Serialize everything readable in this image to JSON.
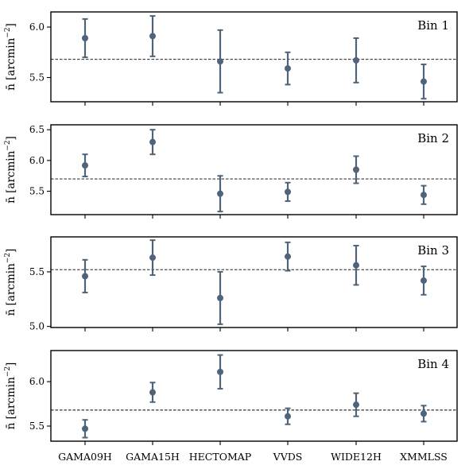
{
  "chart_data": {
    "type": "scatter",
    "categories": [
      "GAMA09H",
      "GAMA15H",
      "HECTOMAP",
      "VVDS",
      "WIDE12H",
      "XMMLSS"
    ],
    "ylabel": {
      "main": "n̄ [arcmin",
      "sup": "−2",
      "close": "]"
    },
    "series_color": "#4f6479",
    "panels": [
      {
        "label": "Bin 1",
        "ylim": [
          5.26,
          6.15
        ],
        "yticks": [
          5.5,
          6.0
        ],
        "ytick_labels": [
          "5.5",
          "6.0"
        ],
        "mean": 5.68,
        "values": [
          5.89,
          5.91,
          5.66,
          5.59,
          5.67,
          5.46
        ],
        "errors": [
          0.19,
          0.2,
          0.31,
          0.16,
          0.22,
          0.17
        ]
      },
      {
        "label": "Bin 2",
        "ylim": [
          5.12,
          6.58
        ],
        "yticks": [
          5.5,
          6.0,
          6.5
        ],
        "ytick_labels": [
          "5.5",
          "6.0",
          "6.5"
        ],
        "mean": 5.7,
        "values": [
          5.92,
          6.3,
          5.46,
          5.49,
          5.85,
          5.44
        ],
        "errors": [
          0.18,
          0.2,
          0.29,
          0.15,
          0.22,
          0.15
        ]
      },
      {
        "label": "Bin 3",
        "ylim": [
          4.99,
          5.82
        ],
        "yticks": [
          5.0,
          5.5
        ],
        "ytick_labels": [
          "5.0",
          "5.5"
        ],
        "mean": 5.52,
        "values": [
          5.46,
          5.63,
          5.26,
          5.64,
          5.56,
          5.42
        ],
        "errors": [
          0.15,
          0.16,
          0.24,
          0.13,
          0.18,
          0.13
        ]
      },
      {
        "label": "Bin 4",
        "ylim": [
          5.33,
          6.35
        ],
        "yticks": [
          5.5,
          6.0
        ],
        "ytick_labels": [
          "5.5",
          "6.0"
        ],
        "mean": 5.68,
        "values": [
          5.47,
          5.88,
          6.11,
          5.61,
          5.74,
          5.64
        ],
        "errors": [
          0.1,
          0.11,
          0.19,
          0.09,
          0.13,
          0.09
        ]
      }
    ]
  }
}
